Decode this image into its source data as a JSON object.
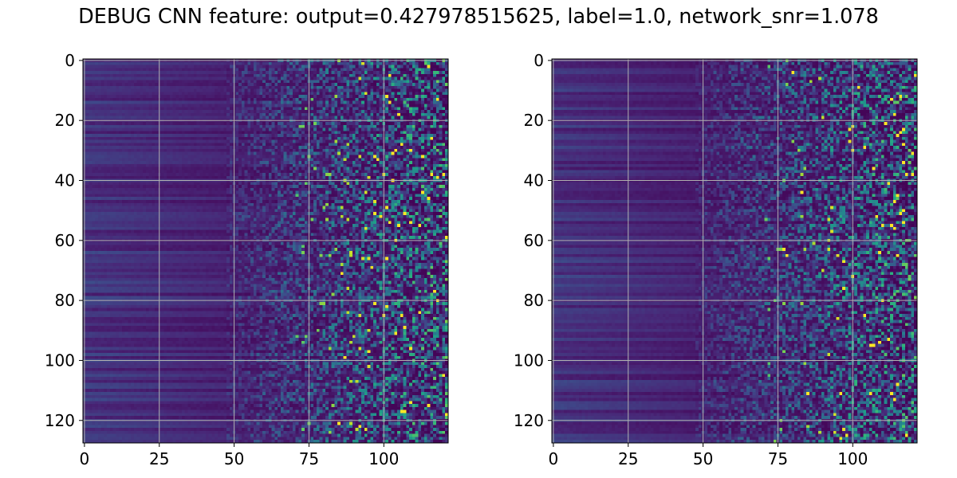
{
  "title": "DEBUG CNN feature: output=0.427978515625, label=1.0, network_snr=1.078",
  "colormap": "viridis",
  "colormap_stops": [
    "#440154",
    "#482878",
    "#3e4989",
    "#31688e",
    "#26828e",
    "#1f9e89",
    "#35b779",
    "#6ece58",
    "#b5de2b",
    "#fde725"
  ],
  "grid": true,
  "grid_color": "#b0b0b0",
  "chart_data": [
    {
      "type": "heatmap",
      "title": "",
      "xlabel": "",
      "ylabel": "",
      "n_cols": 122,
      "n_rows": 128,
      "xlim": [
        -0.5,
        121.5
      ],
      "ylim": [
        127.5,
        -0.5
      ],
      "x_ticks": [
        0,
        25,
        50,
        75,
        100
      ],
      "x_tick_labels": [
        "0",
        "25",
        "50",
        "75",
        "100"
      ],
      "y_ticks": [
        0,
        20,
        40,
        60,
        80,
        100,
        120
      ],
      "y_tick_labels": [
        "0",
        "20",
        "40",
        "60",
        "80",
        "100",
        "120"
      ],
      "seed": 17,
      "bright_spots": [
        [
          109,
          30
        ],
        [
          87,
          99
        ],
        [
          95,
          97
        ],
        [
          106,
          85
        ],
        [
          92,
          122
        ],
        [
          85,
          121
        ],
        [
          86,
          71
        ],
        [
          101,
          12
        ]
      ]
    },
    {
      "type": "heatmap",
      "title": "",
      "xlabel": "",
      "ylabel": "",
      "n_cols": 122,
      "n_rows": 128,
      "xlim": [
        -0.5,
        121.5
      ],
      "ylim": [
        127.5,
        -0.5
      ],
      "x_ticks": [
        0,
        25,
        50,
        75,
        100
      ],
      "x_tick_labels": [
        "0",
        "25",
        "50",
        "75",
        "100"
      ],
      "y_ticks": [
        0,
        20,
        40,
        60,
        80,
        100,
        120
      ],
      "y_tick_labels": [
        "0",
        "20",
        "40",
        "60",
        "80",
        "100",
        "120"
      ],
      "seed": 53,
      "bright_spots": [
        [
          80,
          4
        ],
        [
          85,
          111
        ],
        [
          100,
          72
        ],
        [
          77,
          63
        ],
        [
          83,
          44
        ],
        [
          96,
          111
        ],
        [
          114,
          56
        ],
        [
          78,
          65
        ]
      ]
    }
  ]
}
